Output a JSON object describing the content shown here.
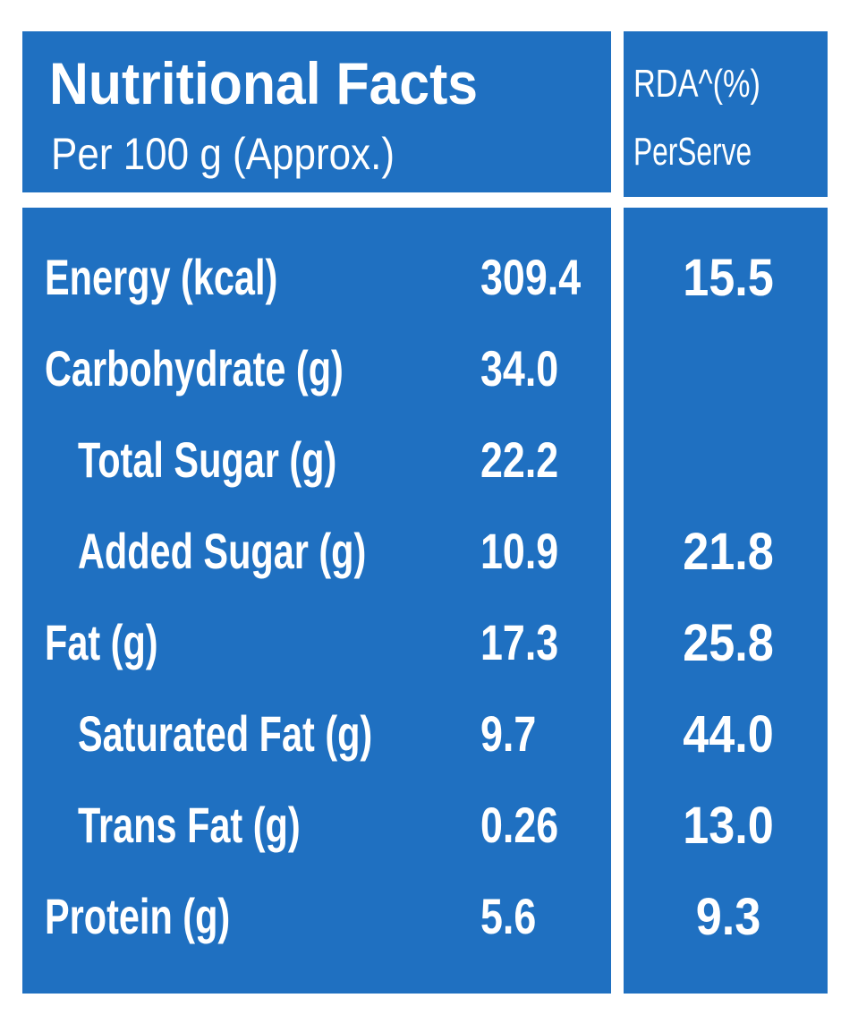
{
  "header": {
    "title": "Nutritional Facts",
    "subtitle": "Per 100 g (Approx.)",
    "rda_title": "RDA^(%)",
    "rda_subtitle": "PerServe"
  },
  "table": {
    "rows": [
      {
        "label": "Energy (kcal)",
        "value": "309.4",
        "rda": "15.5",
        "indent": false
      },
      {
        "label": "Carbohydrate (g)",
        "value": "34.0",
        "indent": false
      },
      {
        "label": "Total Sugar (g)",
        "value": "22.2",
        "indent": true
      },
      {
        "label": "Added Sugar (g)",
        "value": "10.9",
        "rda": "21.8",
        "indent": true
      },
      {
        "label": "Fat (g)",
        "value": "17.3",
        "rda": "25.8",
        "indent": false
      },
      {
        "label": "Saturated Fat (g)",
        "value": "9.7",
        "rda": "44.0",
        "indent": true
      },
      {
        "label": "Trans Fat (g)",
        "value": "0.26",
        "rda": "13.0",
        "indent": true
      },
      {
        "label": "Protein (g)",
        "value": "5.6",
        "rda": "9.3",
        "indent": false
      }
    ]
  }
}
